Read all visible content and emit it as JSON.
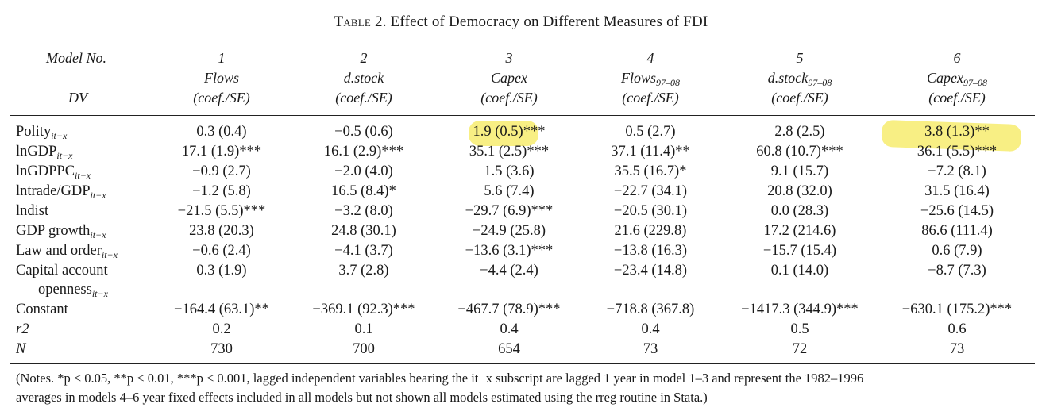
{
  "title": {
    "prefix": "Table 2.",
    "text": "Effect of Democracy on Different Measures of FDI"
  },
  "header": {
    "model_label": "Model No.",
    "dv_label": "DV",
    "columns": [
      {
        "num": "1",
        "dv": "Flows",
        "dv_sub": "",
        "se": "(coef./SE)"
      },
      {
        "num": "2",
        "dv": "d.stock",
        "dv_sub": "",
        "se": "(coef./SE)"
      },
      {
        "num": "3",
        "dv": "Capex",
        "dv_sub": "",
        "se": "(coef./SE)"
      },
      {
        "num": "4",
        "dv": "Flows",
        "dv_sub": "97–08",
        "se": "(coef./SE)"
      },
      {
        "num": "5",
        "dv": "d.stock",
        "dv_sub": "97–08",
        "se": "(coef./SE)"
      },
      {
        "num": "6",
        "dv": "Capex",
        "dv_sub": "97–08",
        "se": "(coef./SE)"
      }
    ]
  },
  "rows": [
    {
      "label": "Polity",
      "sub": "it−x",
      "cells": [
        "0.3 (0.4)",
        "−0.5 (0.6)",
        "1.9 (0.5)***",
        "0.5 (2.7)",
        "2.8 (2.5)",
        "3.8 (1.3)**"
      ]
    },
    {
      "label": "lnGDP",
      "sub": "it−x",
      "cells": [
        "17.1 (1.9)***",
        "16.1 (2.9)***",
        "35.1 (2.5)***",
        "37.1 (11.4)**",
        "60.8 (10.7)***",
        "36.1 (5.5)***"
      ]
    },
    {
      "label": "lnGDPPC",
      "sub": "it−x",
      "cells": [
        "−0.9 (2.7)",
        "−2.0 (4.0)",
        "1.5 (3.6)",
        "35.5 (16.7)*",
        "9.1 (15.7)",
        "−7.2 (8.1)"
      ]
    },
    {
      "label": "lntrade/GDP",
      "sub": "it−x",
      "cells": [
        "−1.2 (5.8)",
        "16.5 (8.4)*",
        "5.6 (7.4)",
        "−22.7 (34.1)",
        "20.8 (32.0)",
        "31.5 (16.4)"
      ]
    },
    {
      "label": "lndist",
      "sub": "",
      "cells": [
        "−21.5 (5.5)***",
        "−3.2 (8.0)",
        "−29.7 (6.9)***",
        "−20.5 (30.1)",
        "0.0 (28.3)",
        "−25.6 (14.5)"
      ]
    },
    {
      "label": "GDP growth",
      "sub": "it−x",
      "cells": [
        "23.8 (20.3)",
        "24.8 (30.1)",
        "−24.9 (25.8)",
        "21.6 (229.8)",
        "17.2 (214.6)",
        "86.6 (111.4)"
      ]
    },
    {
      "label": "Law and order",
      "sub": "it−x",
      "cells": [
        "−0.6 (2.4)",
        "−4.1 (3.7)",
        "−13.6 (3.1)***",
        "−13.8 (16.3)",
        "−15.7 (15.4)",
        "0.6 (7.9)"
      ]
    },
    {
      "label": "Capital account",
      "sub": "",
      "cells": [
        "0.3 (1.9)",
        "3.7 (2.8)",
        "−4.4 (2.4)",
        "−23.4 (14.8)",
        "0.1 (14.0)",
        "−8.7 (7.3)"
      ]
    },
    {
      "label": "openness",
      "sub": "it−x",
      "cells": [
        "",
        "",
        "",
        "",
        "",
        ""
      ]
    },
    {
      "label": "Constant",
      "sub": "",
      "cells": [
        "−164.4 (63.1)**",
        "−369.1 (92.3)***",
        "−467.7 (78.9)***",
        "−718.8 (367.8)",
        "−1417.3 (344.9)***",
        "−630.1 (175.2)***"
      ]
    },
    {
      "label": "r2",
      "sub": "",
      "italic": true,
      "cells": [
        "0.2",
        "0.1",
        "0.4",
        "0.4",
        "0.5",
        "0.6"
      ]
    },
    {
      "label": "N",
      "sub": "",
      "italic": true,
      "cells": [
        "730",
        "700",
        "654",
        "73",
        "72",
        "73"
      ]
    }
  ],
  "notes": {
    "line1": "(Notes. *p < 0.05, **p < 0.01, ***p < 0.001, lagged independent variables bearing the it−x subscript are lagged 1 year in model 1–3 and represent the 1982–1996",
    "line2": "averages in models 4–6 year fixed effects included in all models but not shown all models estimated using the rreg routine in Stata.)"
  },
  "highlight_color": "#f7ec6e"
}
